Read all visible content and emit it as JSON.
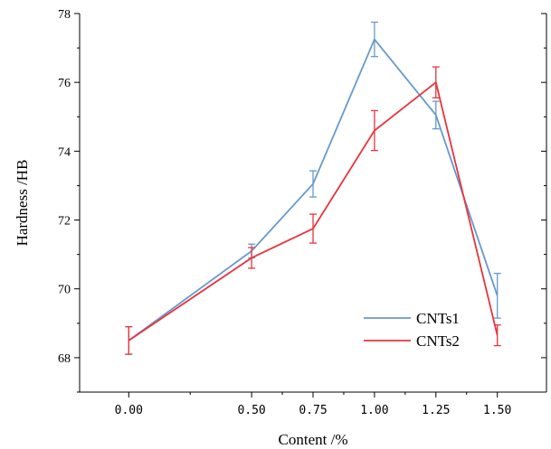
{
  "chart_data": {
    "type": "line",
    "title": "",
    "xlabel": "Content /%",
    "ylabel": "Hardness /HB",
    "x": [
      0.0,
      0.5,
      0.75,
      1.0,
      1.25,
      1.5
    ],
    "x_tick_labels": [
      "0.00",
      "0.50",
      "0.75",
      "1.00",
      "1.25",
      "1.50"
    ],
    "xlim": [
      -0.2,
      1.7
    ],
    "y_ticks": [
      68,
      70,
      72,
      74,
      76,
      78
    ],
    "y_tick_labels": [
      "68",
      "70",
      "72",
      "74",
      "76",
      "78"
    ],
    "ylim": [
      67.0,
      78.0
    ],
    "grid": false,
    "legend_position": "bottom-right",
    "series": [
      {
        "name": "CNTs1",
        "color": "#6699cc",
        "values": [
          68.5,
          71.1,
          73.05,
          77.25,
          75.05,
          69.8
        ],
        "errors": [
          0.4,
          0.2,
          0.38,
          0.5,
          0.4,
          0.65
        ]
      },
      {
        "name": "CNTs2",
        "color": "#e8343c",
        "values": [
          68.5,
          70.9,
          71.75,
          74.6,
          76.0,
          68.65
        ],
        "errors": [
          0.4,
          0.3,
          0.42,
          0.58,
          0.45,
          0.3
        ]
      }
    ]
  }
}
